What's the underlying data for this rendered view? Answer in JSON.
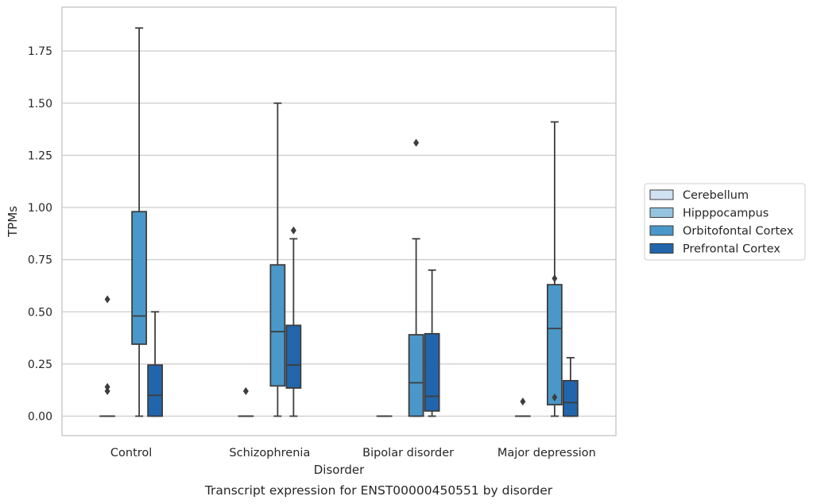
{
  "chart_data": {
    "type": "box",
    "title": "",
    "xlabel": "Disorder",
    "ylabel": "TPMs",
    "caption": "Transcript expression for ENST00000450551 by disorder",
    "ylim": [
      -0.09,
      1.95
    ],
    "yticks": [
      0.0,
      0.25,
      0.5,
      0.75,
      1.0,
      1.25,
      1.5,
      1.75
    ],
    "ytick_labels": [
      "0.00",
      "0.25",
      "0.50",
      "0.75",
      "1.00",
      "1.25",
      "1.50",
      "1.75"
    ],
    "grid": "horizontal",
    "legend_position": "right",
    "categories": [
      "Control",
      "Schizophrenia",
      "Bipolar disorder",
      "Major depression"
    ],
    "series": [
      {
        "name": "Cerebellum",
        "color": "#d0e1f2",
        "boxes": [
          {
            "q1": 0,
            "median": 0,
            "q3": 0,
            "whisker_low": 0,
            "whisker_high": 0,
            "outliers": [
              0.12,
              0.14,
              0.56
            ]
          },
          {
            "q1": 0,
            "median": 0,
            "q3": 0,
            "whisker_low": 0,
            "whisker_high": 0,
            "outliers": [
              0.12
            ]
          },
          {
            "q1": 0,
            "median": 0,
            "q3": 0,
            "whisker_low": 0,
            "whisker_high": 0,
            "outliers": []
          },
          {
            "q1": 0,
            "median": 0,
            "q3": 0,
            "whisker_low": 0,
            "whisker_high": 0,
            "outliers": [
              0.07
            ]
          }
        ]
      },
      {
        "name": "Hipppocampus",
        "color": "#94c4df",
        "boxes": [
          null,
          null,
          null,
          null
        ]
      },
      {
        "name": "Orbitofontal Cortex",
        "color": "#4a98c9",
        "boxes": [
          {
            "q1": 0.345,
            "median": 0.48,
            "q3": 0.98,
            "whisker_low": 0,
            "whisker_high": 1.86,
            "outliers": []
          },
          {
            "q1": 0.145,
            "median": 0.405,
            "q3": 0.725,
            "whisker_low": 0,
            "whisker_high": 1.5,
            "outliers": []
          },
          {
            "q1": 0,
            "median": 0.16,
            "q3": 0.39,
            "whisker_low": 0,
            "whisker_high": 0.85,
            "outliers": [
              1.31
            ]
          },
          {
            "q1": 0.055,
            "median": 0.42,
            "q3": 0.63,
            "whisker_low": 0,
            "whisker_high": 1.41,
            "outliers": [
              0.09,
              0.66
            ]
          }
        ]
      },
      {
        "name": "Prefrontal Cortex",
        "color": "#2166ac",
        "boxes": [
          {
            "q1": 0,
            "median": 0.1,
            "q3": 0.245,
            "whisker_low": 0,
            "whisker_high": 0.5,
            "outliers": []
          },
          {
            "q1": 0.135,
            "median": 0.245,
            "q3": 0.435,
            "whisker_low": 0,
            "whisker_high": 0.85,
            "outliers": [
              0.89
            ]
          },
          {
            "q1": 0.025,
            "median": 0.095,
            "q3": 0.395,
            "whisker_low": 0,
            "whisker_high": 0.7,
            "outliers": []
          },
          {
            "q1": 0,
            "median": 0.065,
            "q3": 0.17,
            "whisker_low": 0,
            "whisker_high": 0.28,
            "outliers": []
          }
        ]
      }
    ]
  }
}
